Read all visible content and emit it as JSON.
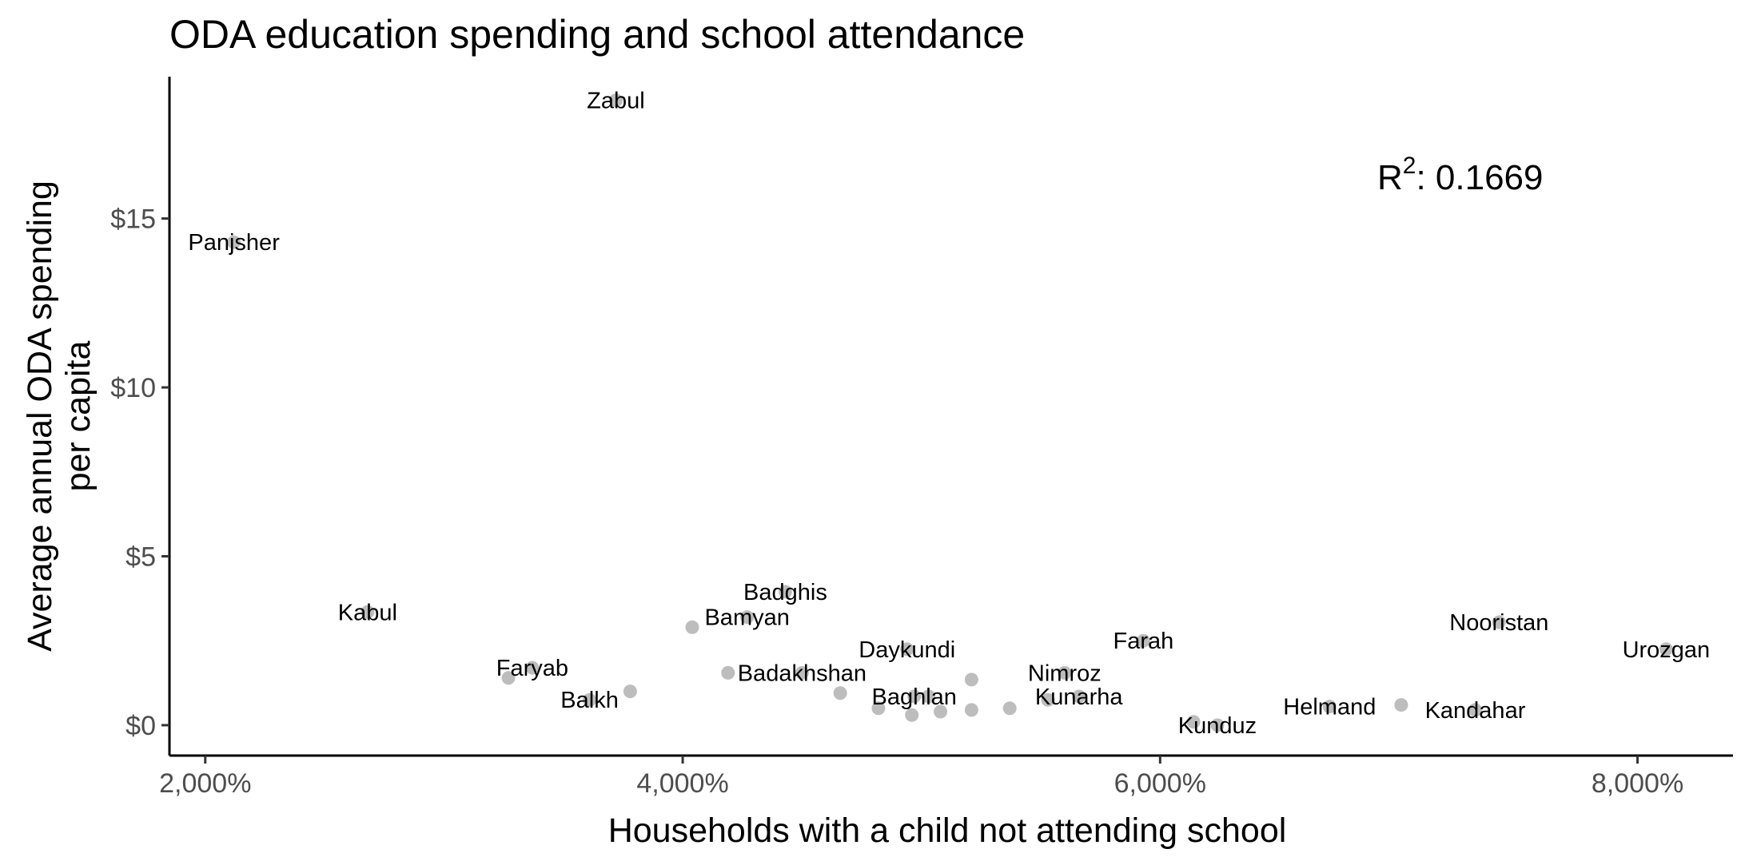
{
  "chart_data": {
    "type": "scatter",
    "title": "ODA education spending and school attendance",
    "xlabel": "Households with a child not attending school",
    "ylabel_lines": [
      "Average annual ODA spending",
      "per capita"
    ],
    "xlim": [
      1850,
      8400
    ],
    "ylim": [
      -0.9,
      19.2
    ],
    "x_ticks": [
      {
        "value": 2000,
        "label": "2,000%"
      },
      {
        "value": 4000,
        "label": "4,000%"
      },
      {
        "value": 6000,
        "label": "6,000%"
      },
      {
        "value": 8000,
        "label": "8,000%"
      }
    ],
    "y_ticks": [
      {
        "value": 0,
        "label": "$0"
      },
      {
        "value": 5,
        "label": "$5"
      },
      {
        "value": 10,
        "label": "$10"
      },
      {
        "value": 15,
        "label": "$15"
      }
    ],
    "grid": false,
    "legend": "none",
    "point_color": "#bdbdbd",
    "text_color": "#000000",
    "tick_label_color": "#4d4d4d",
    "annotation": {
      "base": "R",
      "superscript": "2",
      "value_text": ": 0.1669"
    },
    "points": [
      {
        "x": 3720,
        "y": 18.5,
        "label": "Zabul",
        "label_pos": "center"
      },
      {
        "x": 2120,
        "y": 14.3,
        "label": "Panjsher",
        "label_pos": "center"
      },
      {
        "x": 2680,
        "y": 3.35,
        "label": "Kabul",
        "label_pos": "center"
      },
      {
        "x": 4430,
        "y": 3.95,
        "label": "Badghis",
        "label_pos": "center"
      },
      {
        "x": 4270,
        "y": 3.2,
        "label": "Bamyan",
        "label_pos": "center"
      },
      {
        "x": 4040,
        "y": 2.9,
        "label": "",
        "label_pos": "none"
      },
      {
        "x": 3370,
        "y": 1.7,
        "label": "Faryab",
        "label_pos": "center"
      },
      {
        "x": 3270,
        "y": 1.4,
        "label": "",
        "label_pos": "none"
      },
      {
        "x": 3610,
        "y": 0.75,
        "label": "Balkh",
        "label_pos": "center"
      },
      {
        "x": 3780,
        "y": 1.0,
        "label": "",
        "label_pos": "none"
      },
      {
        "x": 4190,
        "y": 1.55,
        "label": "",
        "label_pos": "none"
      },
      {
        "x": 4500,
        "y": 1.55,
        "label": "Badakhshan",
        "label_pos": "center"
      },
      {
        "x": 4940,
        "y": 2.25,
        "label": "Daykundi",
        "label_pos": "center"
      },
      {
        "x": 4660,
        "y": 0.95,
        "label": "",
        "label_pos": "none"
      },
      {
        "x": 4820,
        "y": 0.5,
        "label": "",
        "label_pos": "none"
      },
      {
        "x": 4970,
        "y": 0.85,
        "label": "Baghlan",
        "label_pos": "center"
      },
      {
        "x": 4960,
        "y": 0.3,
        "label": "",
        "label_pos": "none"
      },
      {
        "x": 5030,
        "y": 0.85,
        "label": "",
        "label_pos": "none"
      },
      {
        "x": 5080,
        "y": 0.4,
        "label": "",
        "label_pos": "none"
      },
      {
        "x": 5210,
        "y": 1.35,
        "label": "",
        "label_pos": "none"
      },
      {
        "x": 5210,
        "y": 0.45,
        "label": "",
        "label_pos": "none"
      },
      {
        "x": 5370,
        "y": 0.5,
        "label": "",
        "label_pos": "none"
      },
      {
        "x": 5600,
        "y": 1.55,
        "label": "Nimroz",
        "label_pos": "center"
      },
      {
        "x": 5530,
        "y": 0.75,
        "label": "",
        "label_pos": "none"
      },
      {
        "x": 5660,
        "y": 0.85,
        "label": "Kunarha",
        "label_pos": "center"
      },
      {
        "x": 5930,
        "y": 2.5,
        "label": "Farah",
        "label_pos": "center"
      },
      {
        "x": 6140,
        "y": 0.1,
        "label": "",
        "label_pos": "none"
      },
      {
        "x": 6240,
        "y": 0.0,
        "label": "Kunduz",
        "label_pos": "center"
      },
      {
        "x": 6710,
        "y": 0.55,
        "label": "Helmand",
        "label_pos": "center"
      },
      {
        "x": 7010,
        "y": 0.6,
        "label": "",
        "label_pos": "none"
      },
      {
        "x": 7320,
        "y": 0.45,
        "label": "Kandahar",
        "label_pos": "center"
      },
      {
        "x": 7420,
        "y": 3.05,
        "label": "Nooristan",
        "label_pos": "center"
      },
      {
        "x": 8120,
        "y": 2.25,
        "label": "Urozgan",
        "label_pos": "center"
      }
    ]
  }
}
